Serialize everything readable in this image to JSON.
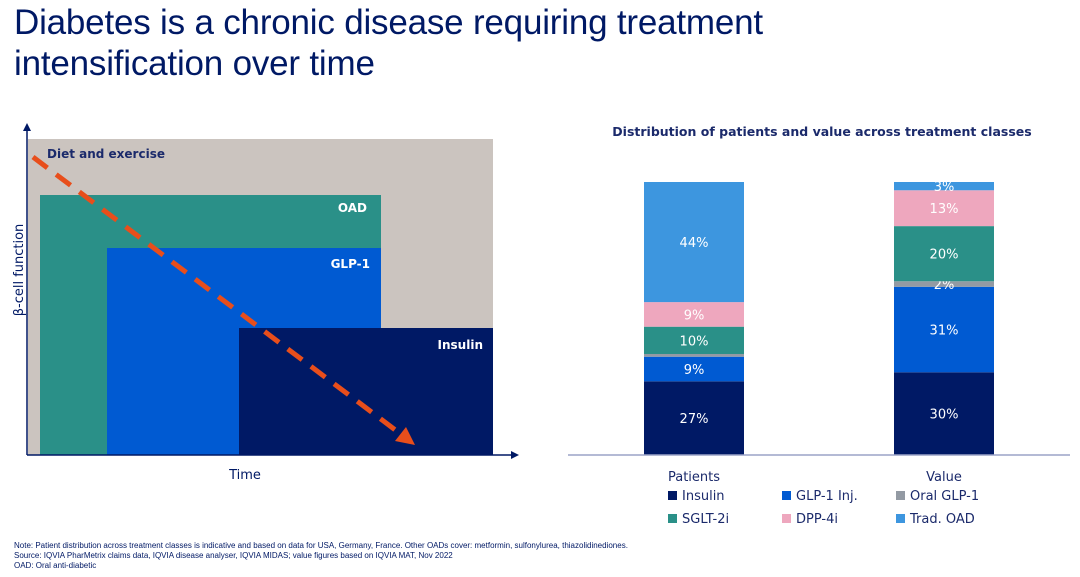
{
  "page": {
    "title_line1": "Diabetes is a chronic disease requiring treatment",
    "title_line2": "intensification over time"
  },
  "diagram": {
    "y_axis_label": "β-cell function",
    "x_axis_label": "Time",
    "stages": [
      {
        "label": "Diet and exercise",
        "color": "#CBC4BF"
      },
      {
        "label": "OAD",
        "color": "#2A9088"
      },
      {
        "label": "GLP-1",
        "color": "#005AD2"
      },
      {
        "label": "Insulin",
        "color": "#001965"
      }
    ],
    "trend_color": "#E84E1B"
  },
  "chart_data": {
    "type": "bar",
    "stacked": true,
    "title": "Distribution of patients and value across treatment classes",
    "categories": [
      "Patients",
      "Value"
    ],
    "unit": "%",
    "ylim": [
      0,
      100
    ],
    "grid": false,
    "legend_position": "bottom",
    "series": [
      {
        "name": "Insulin",
        "color": "#001965",
        "values": [
          27,
          30
        ],
        "labels": [
          "27%",
          "30%"
        ]
      },
      {
        "name": "GLP-1 Inj.",
        "color": "#005AD2",
        "values": [
          9,
          31
        ],
        "labels": [
          "9%",
          "31%"
        ]
      },
      {
        "name": "Oral GLP-1",
        "color": "#939AA3",
        "values": [
          1,
          2
        ],
        "labels": [
          "",
          "2%"
        ]
      },
      {
        "name": "SGLT-2i",
        "color": "#2A9088",
        "values": [
          10,
          20
        ],
        "labels": [
          "10%",
          "20%"
        ]
      },
      {
        "name": "DPP-4i",
        "color": "#EEA7BE",
        "values": [
          9,
          13
        ],
        "labels": [
          "9%",
          "13%"
        ]
      },
      {
        "name": "Trad. OAD",
        "color": "#3D96DF",
        "values": [
          44,
          3
        ],
        "labels": [
          "44%",
          "3%"
        ]
      }
    ]
  },
  "notes": {
    "line1": "Note: Patient distribution across treatment classes is indicative and based on data for USA, Germany, France. Other OADs cover: metformin, sulfonylurea, thiazolidinediones.",
    "line2": "Source: IQVIA PharMetrix claims data, IQVIA disease analyser, IQVIA MIDAS; value figures based on IQVIA MAT, Nov 2022",
    "line3": "OAD: Oral anti-diabetic"
  }
}
